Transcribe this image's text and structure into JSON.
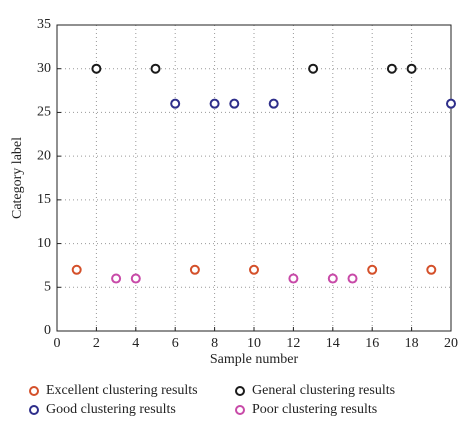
{
  "chart_data": {
    "type": "scatter",
    "xlabel": "Sample number",
    "ylabel": "Category label",
    "xlim": [
      0,
      20
    ],
    "xticks": [
      0,
      2,
      4,
      6,
      8,
      10,
      12,
      14,
      16,
      18,
      20
    ],
    "ylim": [
      0,
      35
    ],
    "yticks": [
      0,
      5,
      10,
      15,
      20,
      25,
      30,
      35
    ],
    "grid": true,
    "legend": "bottom",
    "series": [
      {
        "name": "Excellent clustering results",
        "color": "#d4502a",
        "x": [
          1,
          7,
          10,
          16,
          19
        ],
        "values": [
          7,
          7,
          7,
          7,
          7
        ]
      },
      {
        "name": "General clustering results",
        "color": "#1a1a1a",
        "x": [
          2,
          5,
          13,
          17,
          18
        ],
        "values": [
          30,
          30,
          30,
          30,
          30
        ]
      },
      {
        "name": "Good clustering results",
        "color": "#2e2e8a",
        "x": [
          6,
          8,
          9,
          11,
          20
        ],
        "values": [
          26,
          26,
          26,
          26,
          26
        ]
      },
      {
        "name": "Poor clustering results",
        "color": "#c84aa8",
        "x": [
          3,
          4,
          12,
          14,
          15
        ],
        "values": [
          6,
          6,
          6,
          6,
          6
        ]
      }
    ]
  }
}
